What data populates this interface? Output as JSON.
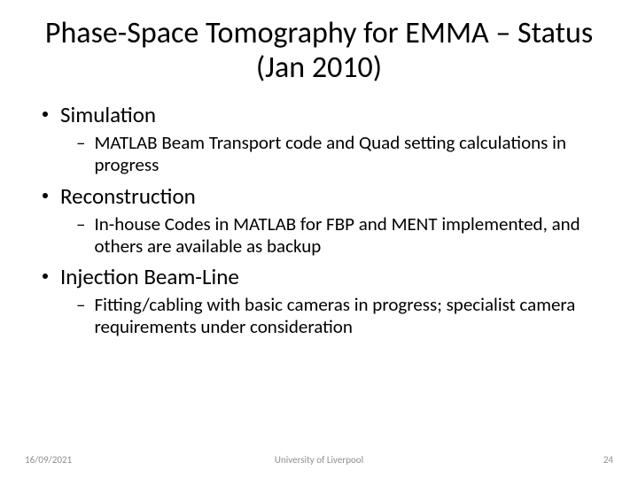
{
  "title": "Phase-Space Tomography for EMMA – Status (Jan 2010)",
  "bullets": [
    {
      "label": "Simulation",
      "sub": "MATLAB Beam Transport code and Quad setting calculations in progress"
    },
    {
      "label": "Reconstruction",
      "sub": "In-house Codes in MATLAB for FBP and MENT implemented, and others are available as backup"
    },
    {
      "label": "Injection Beam-Line",
      "sub": "Fitting/cabling with basic cameras in progress; specialist camera requirements under consideration"
    }
  ],
  "footer": {
    "date": "16/09/2021",
    "org": "University of Liverpool",
    "page": "24"
  },
  "style": {
    "title_fontsize": 34,
    "l1_fontsize": 25,
    "l2_fontsize": 21,
    "footer_fontsize": 11,
    "text_color": "#000000",
    "footer_color": "#8f8f8f",
    "background_color": "#ffffff",
    "bullet_dot_color": "#000000"
  }
}
